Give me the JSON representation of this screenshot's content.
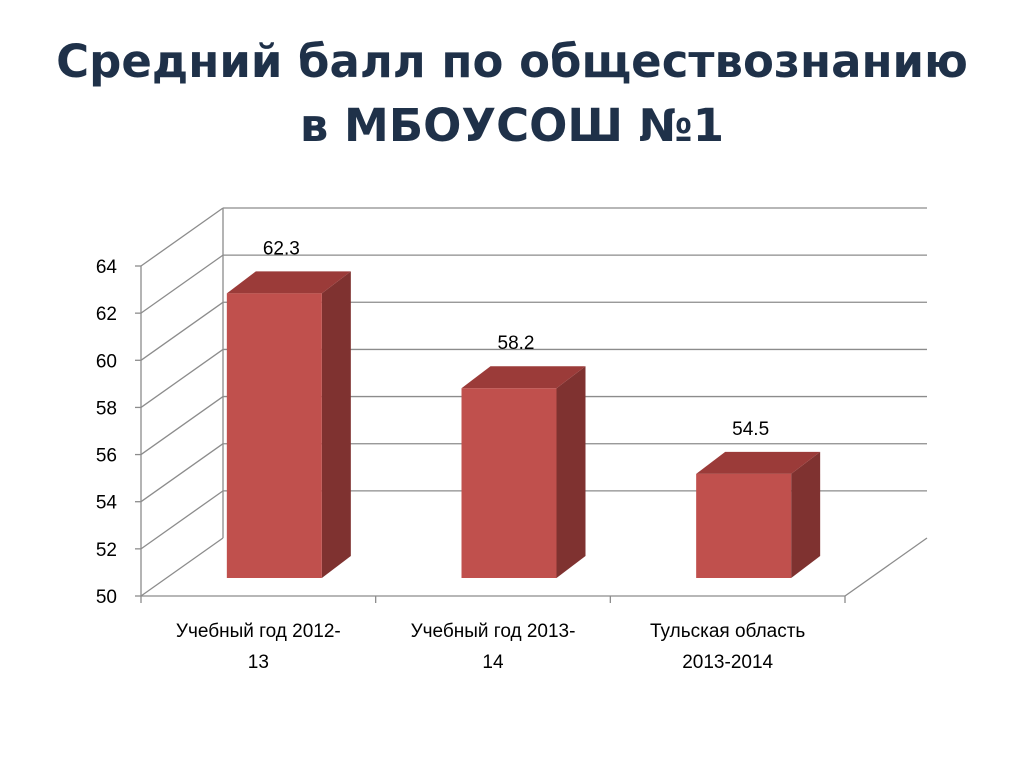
{
  "title": {
    "line1": "Средний балл по обществознанию",
    "line2": "в МБОУСОШ №1"
  },
  "chart_data": {
    "type": "bar",
    "style": "3d-column",
    "categories": [
      [
        "Учебный год 2012-",
        "13"
      ],
      [
        "Учебный год 2013-",
        "14"
      ],
      [
        "Тульская область",
        "2013-2014"
      ]
    ],
    "values": [
      62.3,
      58.2,
      54.5
    ],
    "data_labels": [
      "62.3",
      "58.2",
      "54.5"
    ],
    "ylim": [
      50,
      64
    ],
    "yticks": [
      50,
      52,
      54,
      56,
      58,
      60,
      62,
      64
    ],
    "grid": true,
    "legend": "none",
    "colors": {
      "front": "#c0504d",
      "side": "#7f3230",
      "top": "#9b3b39",
      "grid": "#8c8c8c"
    }
  }
}
